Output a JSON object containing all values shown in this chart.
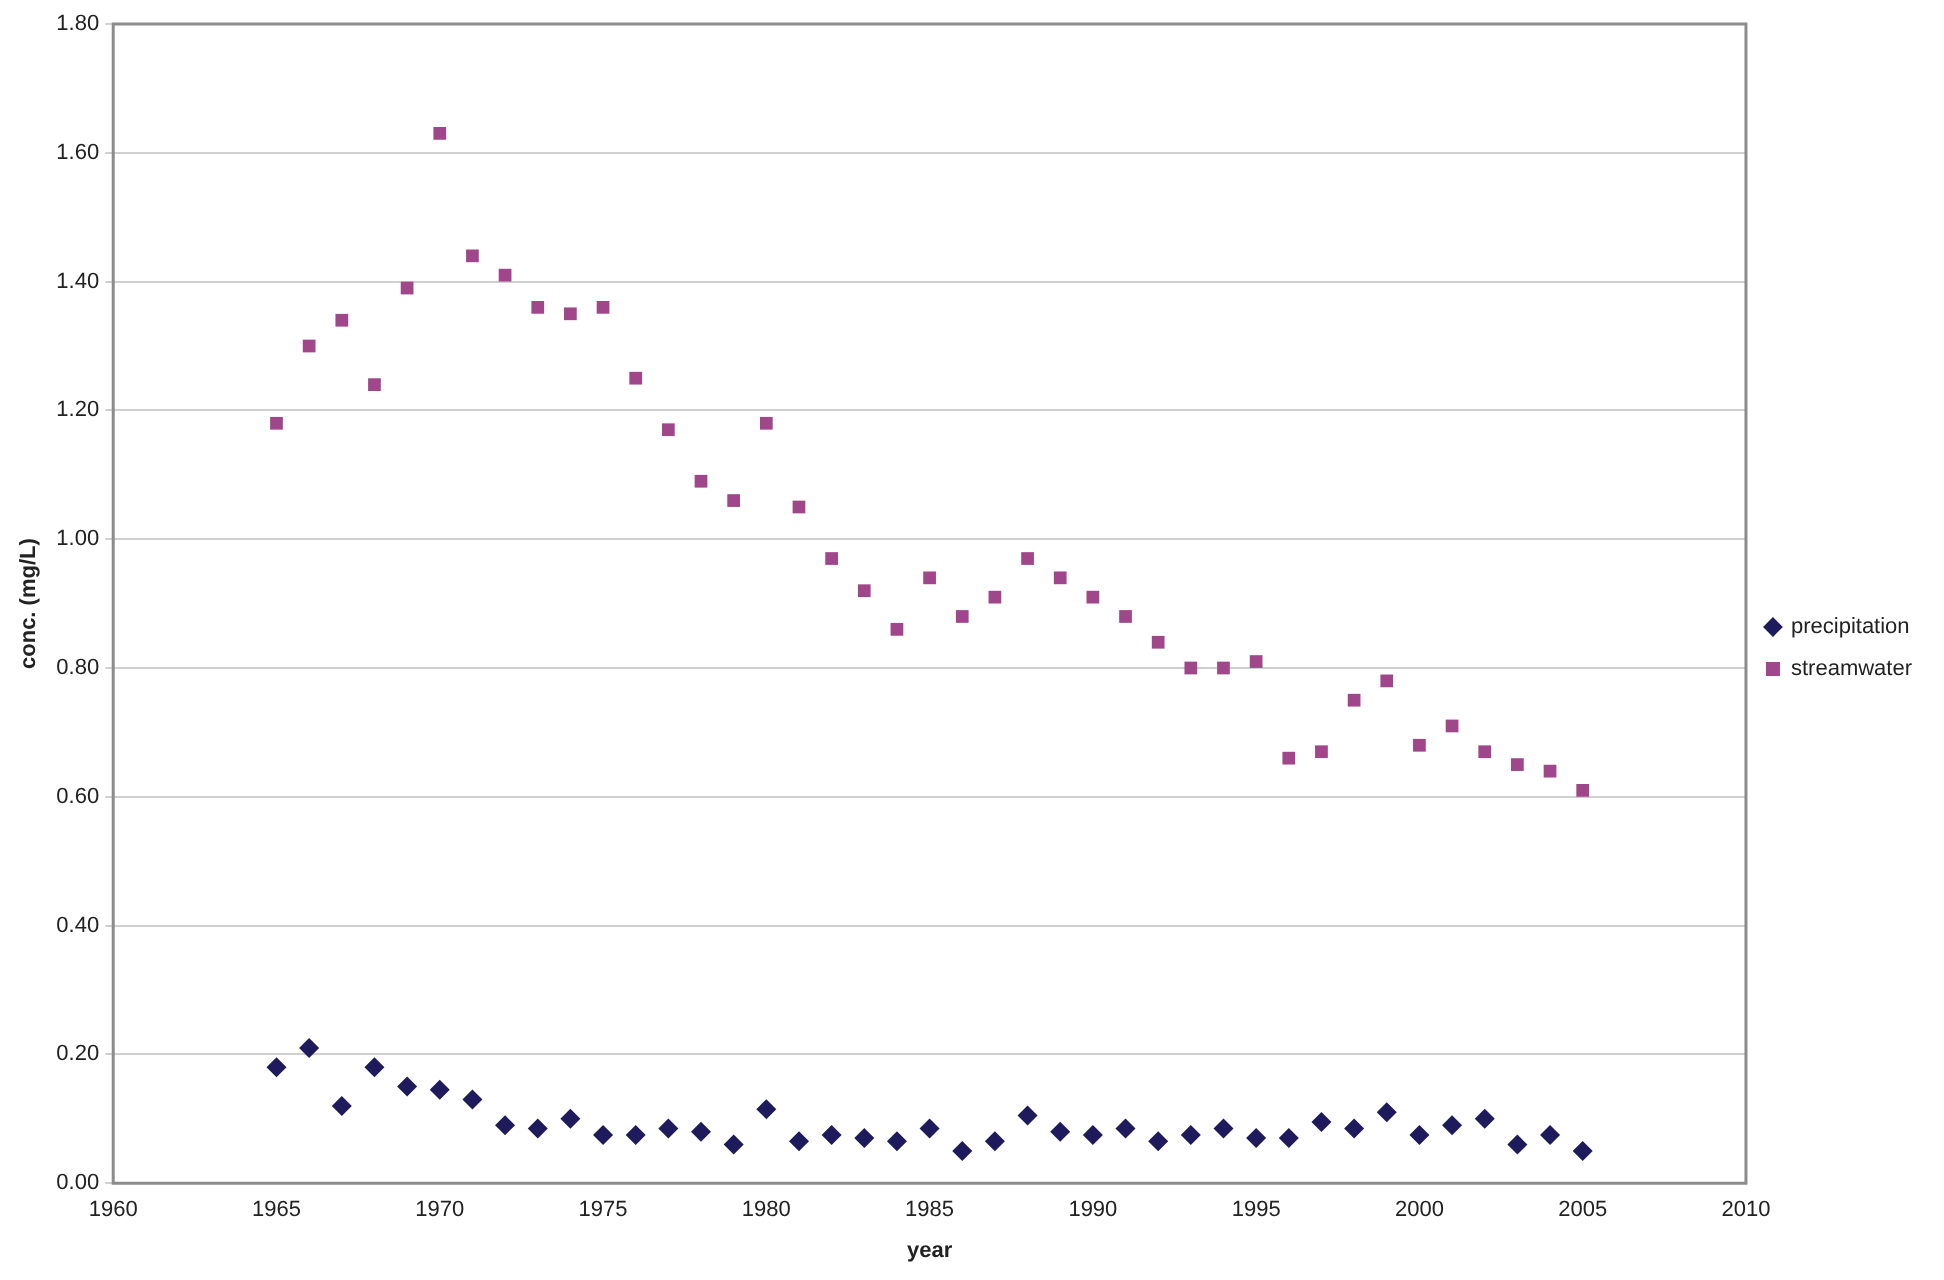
{
  "chart_data": {
    "type": "scatter",
    "xlabel": "year",
    "ylabel": "conc. (mg/L)",
    "x": [
      1965,
      1966,
      1967,
      1968,
      1969,
      1970,
      1971,
      1972,
      1973,
      1974,
      1975,
      1976,
      1977,
      1978,
      1979,
      1980,
      1981,
      1982,
      1983,
      1984,
      1985,
      1986,
      1987,
      1988,
      1989,
      1990,
      1991,
      1992,
      1993,
      1994,
      1995,
      1996,
      1997,
      1998,
      1999,
      2000,
      2001,
      2002,
      2003,
      2004,
      2005
    ],
    "series": [
      {
        "name": "precipitation",
        "color": "#1f1a5c",
        "marker": "diamond",
        "values": [
          0.18,
          0.21,
          0.12,
          0.18,
          0.15,
          0.145,
          0.13,
          0.09,
          0.085,
          0.1,
          0.075,
          0.075,
          0.085,
          0.08,
          0.06,
          0.115,
          0.065,
          0.075,
          0.07,
          0.065,
          0.085,
          0.05,
          0.065,
          0.105,
          0.08,
          0.075,
          0.085,
          0.065,
          0.075,
          0.085,
          0.07,
          0.07,
          0.095,
          0.085,
          0.11,
          0.075,
          0.09,
          0.1,
          0.06,
          0.075,
          0.05
        ]
      },
      {
        "name": "streamwater",
        "color": "#a0468a",
        "marker": "square",
        "values": [
          1.18,
          1.3,
          1.34,
          1.24,
          1.39,
          1.63,
          1.44,
          1.41,
          1.36,
          1.35,
          1.36,
          1.25,
          1.17,
          1.09,
          1.06,
          1.18,
          1.05,
          0.97,
          0.92,
          0.86,
          0.94,
          0.88,
          0.91,
          0.97,
          0.94,
          0.91,
          0.88,
          0.84,
          0.8,
          0.8,
          0.81,
          0.66,
          0.67,
          0.75,
          0.78,
          0.68,
          0.71,
          0.67,
          0.65,
          0.64,
          0.61
        ]
      }
    ],
    "xlim": [
      1960,
      2010
    ],
    "xticks": [
      1960,
      1965,
      1970,
      1975,
      1980,
      1985,
      1990,
      1995,
      2000,
      2005,
      2010
    ],
    "ylim": [
      0,
      1.8
    ],
    "yticks": [
      {
        "value": 0,
        "label": "0.00"
      },
      {
        "value": 0.2,
        "label": "0.20"
      },
      {
        "value": 0.4,
        "label": "0.40"
      },
      {
        "value": 0.6,
        "label": "0.60"
      },
      {
        "value": 0.8,
        "label": "0.80"
      },
      {
        "value": 1,
        "label": "1.00"
      },
      {
        "value": 1.2,
        "label": "1.20"
      },
      {
        "value": 1.4,
        "label": "1.40"
      },
      {
        "value": 1.6,
        "label": "1.60"
      },
      {
        "value": 1.8,
        "label": "1.80"
      }
    ],
    "grid": "y",
    "legend": "right"
  }
}
